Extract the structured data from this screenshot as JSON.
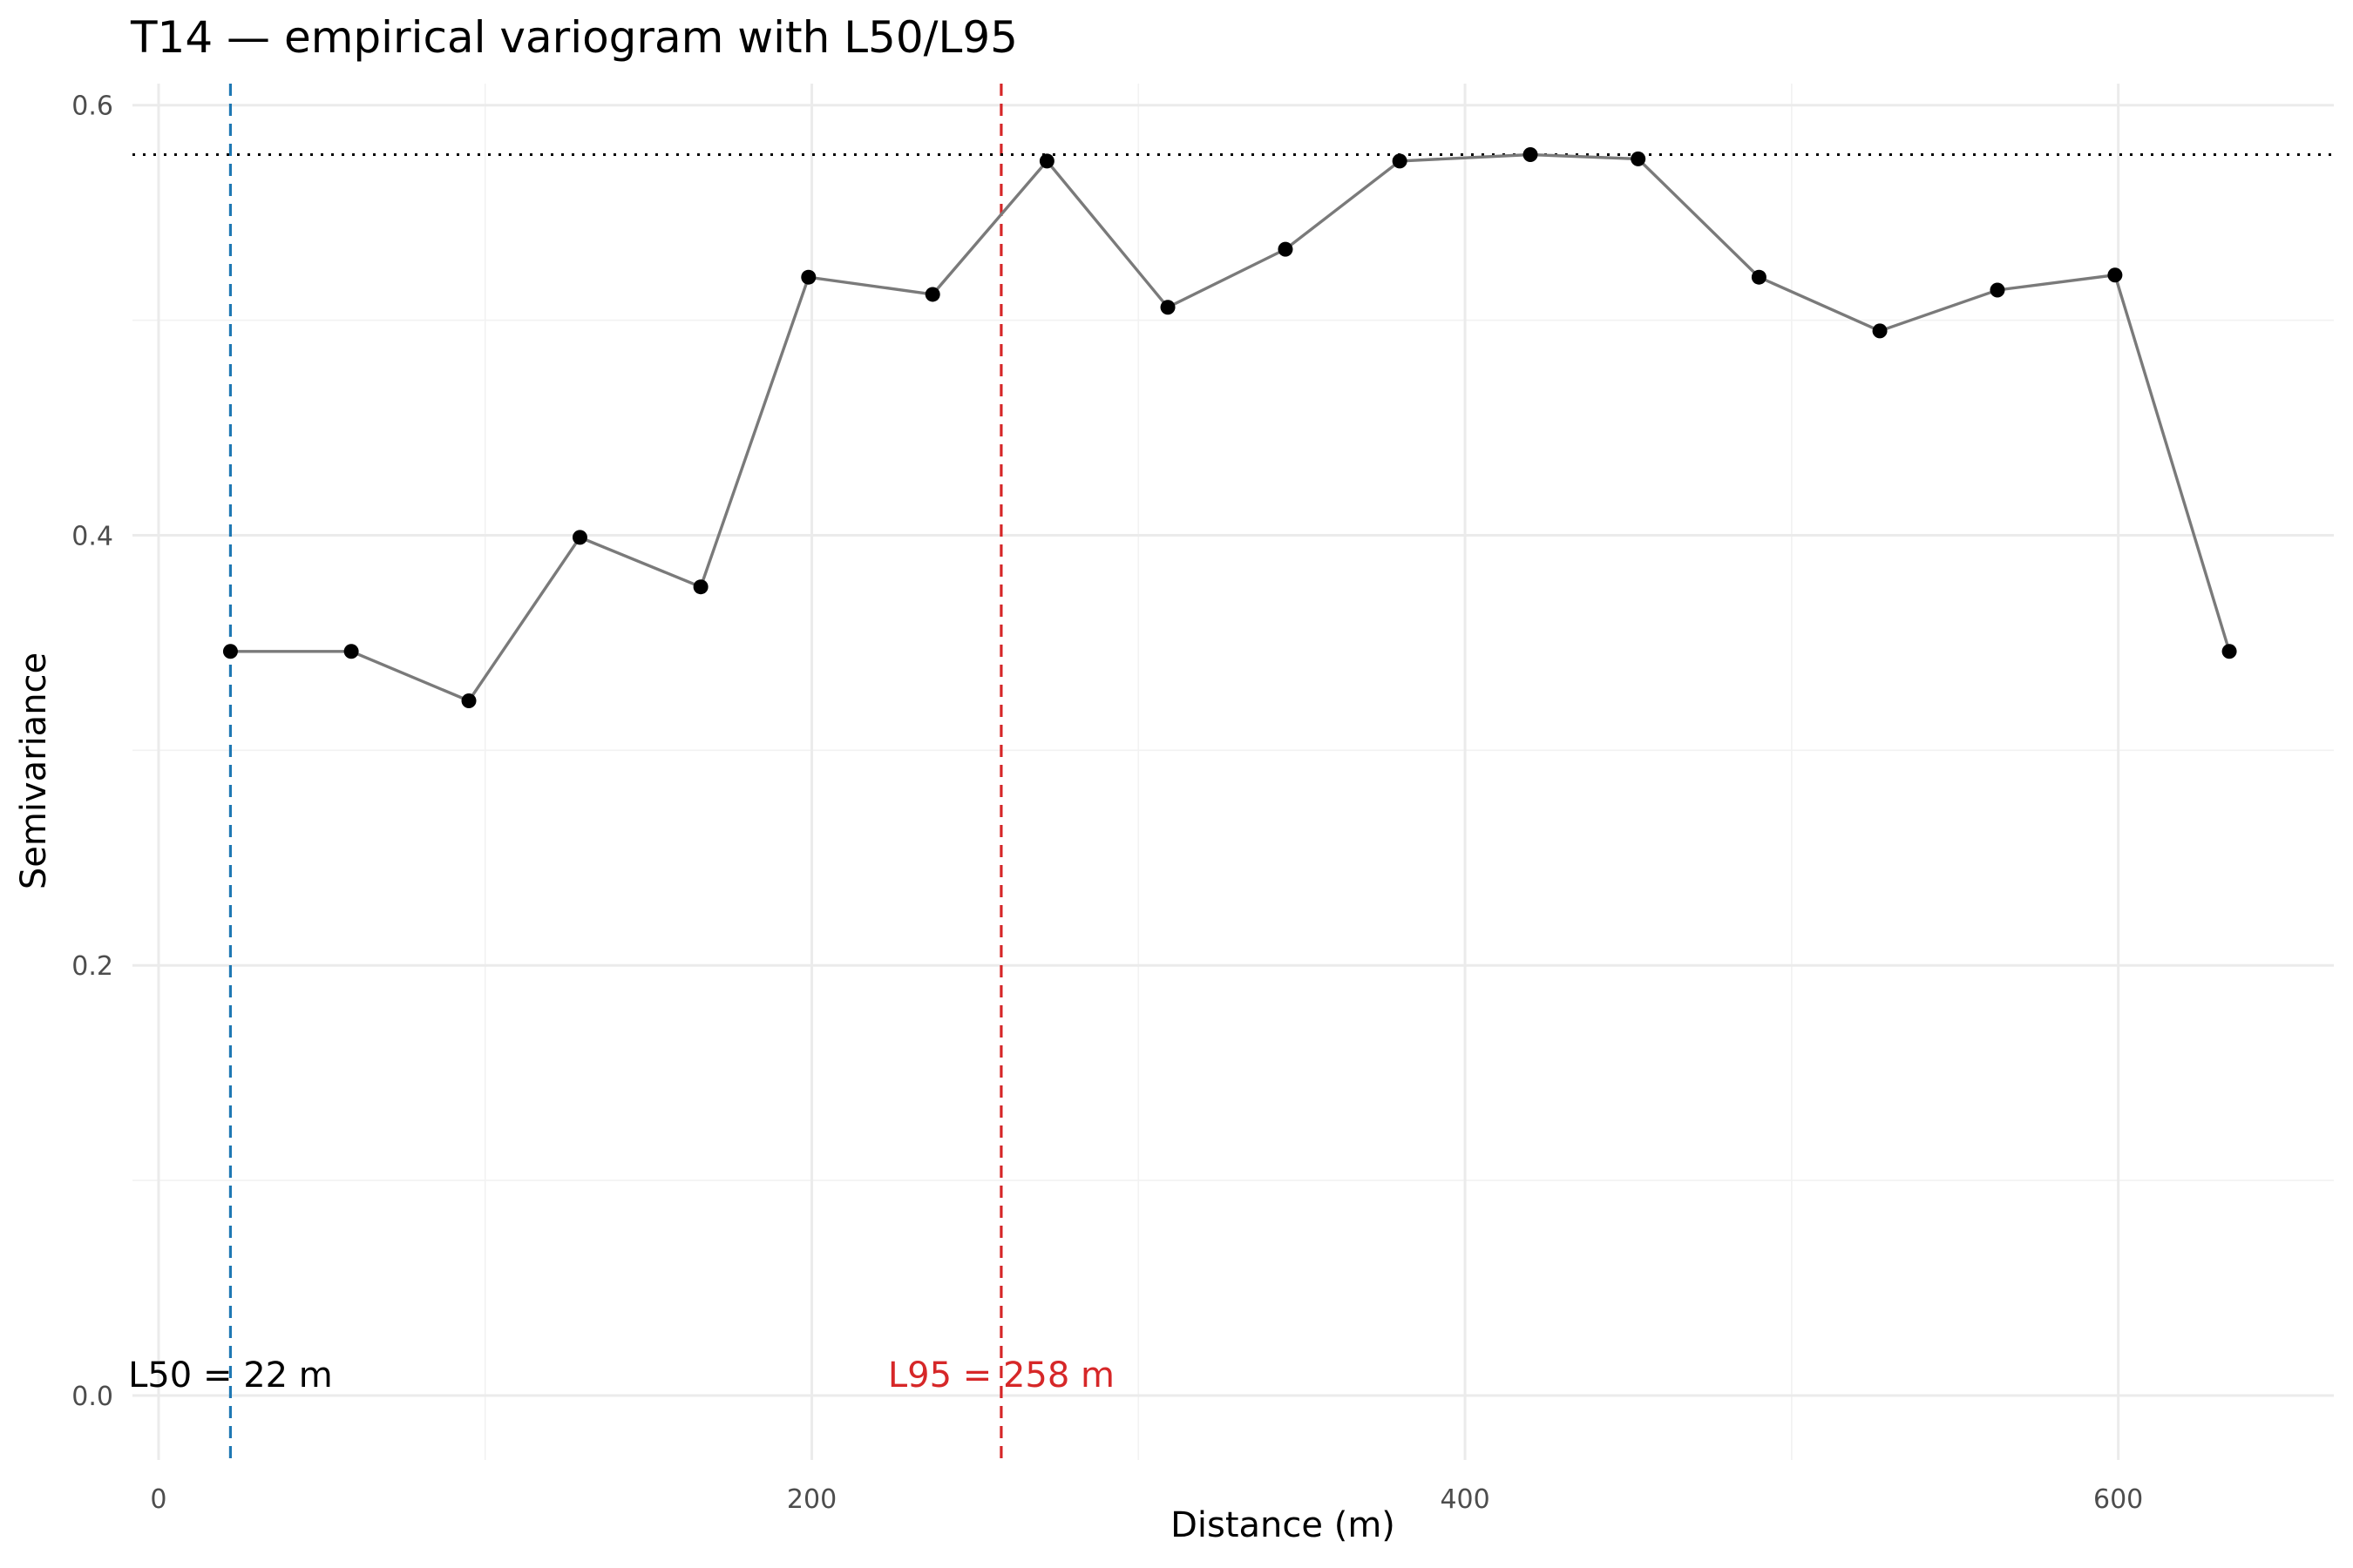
{
  "chart_data": {
    "type": "line",
    "title": "T14 — empirical variogram with L50/L95",
    "xlabel": "Distance (m)",
    "ylabel": "Semivariance",
    "xlim": [
      -8,
      666
    ],
    "ylim": [
      -0.03,
      0.61
    ],
    "x_ticks": [
      0,
      200,
      400,
      600
    ],
    "x_minor_ticks": [
      100,
      300,
      500
    ],
    "y_ticks": [
      0.0,
      0.2,
      0.4,
      0.6
    ],
    "y_minor_ticks": [
      0.1,
      0.3,
      0.5
    ],
    "x_tick_labels": [
      "0",
      "200",
      "400",
      "600"
    ],
    "y_tick_labels": [
      "0.0",
      "0.2",
      "0.4",
      "0.6"
    ],
    "grid": true,
    "series": [
      {
        "x": [
          22,
          59,
          95,
          129,
          166,
          199,
          237,
          272,
          309,
          345,
          380,
          420,
          453,
          490,
          527,
          563,
          599,
          634
        ],
        "y": [
          0.346,
          0.346,
          0.323,
          0.399,
          0.376,
          0.52,
          0.512,
          0.574,
          0.506,
          0.533,
          0.574,
          0.577,
          0.575,
          0.52,
          0.495,
          0.514,
          0.521,
          0.346
        ],
        "color": "#7a7a7a",
        "point_color": "#000000"
      }
    ],
    "reference_lines": [
      {
        "orientation": "vertical",
        "x": 22,
        "style": "dashed",
        "color": "#1f78b4"
      },
      {
        "orientation": "vertical",
        "x": 258,
        "style": "dashed",
        "color": "#d62728"
      },
      {
        "orientation": "horizontal",
        "y": 0.577,
        "style": "dotted",
        "color": "#000000"
      }
    ],
    "annotations": [
      {
        "text": "L50 = 22 m",
        "x": 22,
        "y": 0.0,
        "color": "#000000"
      },
      {
        "text": "L95 = 258 m",
        "x": 258,
        "y": 0.0,
        "color": "#d62728"
      }
    ]
  }
}
